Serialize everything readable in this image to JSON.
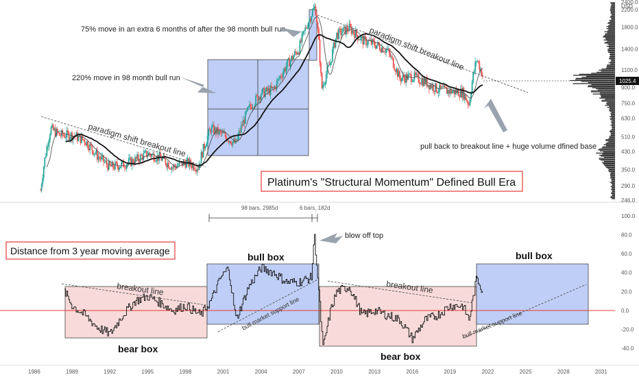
{
  "title": "Platinum's \"Structural Momentum\" Defined Bull Era",
  "oscillator_title": "Distance from 3 year moving average",
  "price_axis_unit": "USD",
  "colors": {
    "up": "#26a69a",
    "down": "#ef5350",
    "ma_black": "#111111",
    "ma_thin": "#555555",
    "bull_box": "#b4c5f5",
    "bear_box": "#f7d4d4",
    "zero_line": "#e53935",
    "current_price_tag": "#111111"
  },
  "annotations": {
    "move75": "75% move in an extra 6 months of after the 98 month bull run",
    "move220": "220% move in 98 month bull run",
    "paradigm_left": "paradigm shift breakout line",
    "paradigm_right": "paradigm shift breakout line",
    "pullback": "pull back to breakout line + huge volume dfined base",
    "blowoff": "blow off top",
    "bars98": "98 bars, 2985d",
    "bars6": "6 bars, 182d",
    "breakout_left": "breakout line",
    "breakout_right": "breakout line",
    "bull_support_left": "bull market support line",
    "bull_support_right": "bull market support line",
    "bull_box_1": "bull box",
    "bull_box_2": "bull box",
    "bear_box_1": "bear box",
    "bear_box_2": "bear box"
  },
  "chart_data": [
    {
      "type": "line",
      "panel": "price",
      "scale": "log",
      "x_ticks": [
        "1986",
        "1989",
        "1992",
        "1995",
        "1998",
        "2001",
        "2004",
        "2007",
        "2010",
        "2013",
        "2016",
        "2019",
        "2022",
        "2025",
        "2028",
        "2031"
      ],
      "y_ticks": [
        2400,
        2200,
        1800,
        1400,
        1100,
        900,
        750,
        630,
        510,
        430,
        350,
        290,
        246
      ],
      "current_price_label": "1025.4",
      "series": [
        {
          "x": [
            1986.5,
            1987.3,
            1988,
            1989,
            1990,
            1991,
            1992,
            1993,
            1994,
            1995,
            1996,
            1997,
            1998,
            1999,
            2000,
            2001,
            2002,
            2003,
            2004,
            2005,
            2006,
            2007,
            2008,
            2008.3,
            2008.8,
            2009.5,
            2010,
            2011,
            2012,
            2013,
            2014,
            2015,
            2016,
            2017,
            2018,
            2019,
            2020,
            2020.5,
            2021.1,
            2021.6
          ],
          "y": [
            275,
            560,
            520,
            520,
            490,
            410,
            360,
            370,
            390,
            420,
            400,
            360,
            380,
            360,
            560,
            520,
            470,
            700,
            840,
            880,
            1150,
            1400,
            2100,
            2280,
            880,
            1200,
            1650,
            1780,
            1550,
            1480,
            1380,
            1000,
            1020,
            960,
            880,
            860,
            850,
            740,
            1250,
            1025
          ]
        }
      ]
    },
    {
      "type": "line",
      "panel": "oscillator",
      "title": "Distance from 3 year moving average",
      "y_ticks": [
        100,
        80,
        60,
        40,
        20,
        0,
        -20,
        -40
      ],
      "series": [
        {
          "x": [
            1988.4,
            1989,
            1990,
            1991,
            1992,
            1993,
            1994,
            1995,
            1996,
            1997,
            1998,
            1999.2,
            2000,
            2000.8,
            2001.4,
            2002,
            2003,
            2004,
            2005,
            2006,
            2007,
            2008,
            2008.2,
            2008.4,
            2008.9,
            2009.5,
            2010,
            2011,
            2012,
            2013,
            2014,
            2015,
            2016,
            2017,
            2018,
            2019,
            2020,
            2020.5,
            2021.1,
            2021.6
          ],
          "y": [
            20,
            5,
            -5,
            -18,
            -25,
            -5,
            10,
            15,
            8,
            0,
            5,
            -5,
            10,
            35,
            45,
            -10,
            25,
            45,
            40,
            30,
            30,
            35,
            82,
            50,
            -40,
            0,
            20,
            25,
            -5,
            0,
            -5,
            -10,
            -30,
            -10,
            -5,
            5,
            5,
            -10,
            35,
            20
          ]
        }
      ]
    }
  ]
}
